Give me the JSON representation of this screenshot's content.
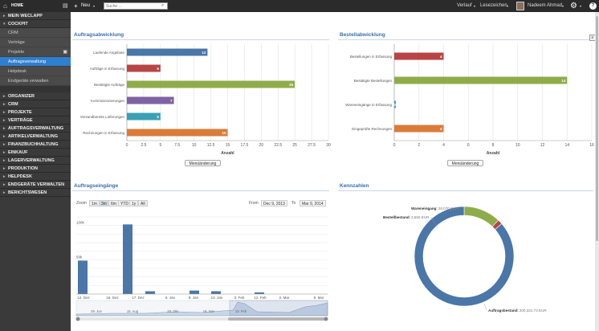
{
  "topbar": {
    "home": "HOME",
    "new": "Neu",
    "search_placeholder": "Suche ...",
    "verlauf": "Verlauf",
    "lesezeichen": "Lesezeichen",
    "user": "Nadeem Ahmad",
    "help": "?"
  },
  "sidebar": {
    "mein": "MEIN WECLAPP",
    "cockpit": "COCKPIT",
    "cockpit_items": [
      "CRM",
      "Verträge",
      "Projekte",
      "Auftragsverwaltung",
      "Helpdesk",
      "Endgeräte verwalten"
    ],
    "sections": [
      "ORGANIZER",
      "CRM",
      "PROJEKTE",
      "VERTRÄGE",
      "AUFTRAGSVERWALTUNG",
      "ARTIKELVERWALTUNG",
      "FINANZBUCHHALTUNG",
      "EINKAUF",
      "LAGERVERWALTUNG",
      "PRODUKTION",
      "HELPDESK",
      "ENDGERÄTE VERWALTEN",
      "BERICHTSWESEN"
    ]
  },
  "colors": {
    "blue": "#4a76a8",
    "red": "#b84545",
    "green": "#8fac4a",
    "purple": "#7f62a3",
    "teal": "#3aa0b5",
    "orange": "#d97c3a",
    "accent": "#2f7fd0"
  },
  "panels": {
    "auftrag": "Auftragsabwicklung",
    "bestell": "Bestellabwicklung",
    "eingaenge": "Auftragseingänge",
    "kennzahlen": "Kennzahlen",
    "reset": "Menüänderung"
  },
  "chart_data": [
    {
      "type": "bar",
      "title": "Auftragsabwicklung",
      "orientation": "horizontal",
      "categories": [
        "Laufende Angebote",
        "Aufträge in Erfassung",
        "Bestätigte Aufträge",
        "Kommissionierungen",
        "Versandbereite Lieferungen",
        "Rechnungen in Erfassung"
      ],
      "values": [
        12,
        5,
        25,
        7,
        5,
        15
      ],
      "colors": [
        "#4a76a8",
        "#b84545",
        "#8fac4a",
        "#7f62a3",
        "#3aa0b5",
        "#d97c3a"
      ],
      "xlabel": "Anzahl",
      "xlim": [
        0,
        30
      ],
      "xticks": [
        "0",
        "2.5",
        "5",
        "7.5",
        "10",
        "12.5",
        "15",
        "17.5",
        "20",
        "22.5",
        "25",
        "27.5",
        "30"
      ]
    },
    {
      "type": "bar",
      "title": "Bestellabwicklung",
      "orientation": "horizontal",
      "categories": [
        "Bestellungen in Erfassung",
        "Bestätigte Bestellungen",
        "Wareneingänge in Erfassung",
        "Eingeprüfte Rechnungen"
      ],
      "values": [
        4,
        14,
        0,
        4
      ],
      "colors": [
        "#b84545",
        "#8fac4a",
        "#3aa0b5",
        "#d97c3a"
      ],
      "xlabel": "Anzahl",
      "xlim": [
        0,
        16
      ],
      "xticks": [
        "0",
        "2",
        "4",
        "6",
        "8",
        "10",
        "12",
        "14",
        "16"
      ]
    },
    {
      "type": "bar",
      "title": "Auftragseingänge",
      "zoom_label": "Zoom",
      "zoom": [
        "1m",
        "3m",
        "6m",
        "YTD",
        "1y",
        "All"
      ],
      "from_label": "From",
      "from": "Dec 9, 2013",
      "to_label": "To",
      "to": "Mar 9, 2014",
      "yticks": [
        "100k",
        "50k"
      ],
      "ylim": [
        0,
        120000
      ],
      "x": [
        "12. Dez",
        "14. Dez",
        "17. Dez",
        "19. Dez",
        "2. Jan",
        "9. Jan",
        "13. Jan",
        "17. Jan",
        "12. Feb",
        "20. Feb",
        "9. Mar"
      ],
      "values": [
        48000,
        0,
        100000,
        4000,
        0,
        5000,
        4000,
        0,
        2000,
        0,
        0
      ],
      "xticks": [
        "12. Dez",
        "16. Dez",
        "17. Dez",
        "6. Jan",
        "8. Jan",
        "13. Jan",
        "3. Feb",
        "12. Feb",
        "2. Mar",
        "9. Mar"
      ],
      "navigator_ticks": [
        "28. Jun",
        "15. Aug",
        "28. Okt",
        "18. Nov",
        "10. Feb"
      ]
    },
    {
      "type": "pie",
      "title": "Kennzahlen",
      "donut": true,
      "slices": [
        {
          "label": "Auftragsbestand",
          "value": "200,331.73 EUR",
          "num": 200331.73,
          "color": "#4a76a8"
        },
        {
          "label": "Bestellbestand",
          "value": "3,550 EUR",
          "num": 3550,
          "color": "#b84545"
        },
        {
          "label": "Wareneingang",
          "value": "28,070 EUR",
          "num": 28070,
          "color": "#8fac4a"
        }
      ]
    }
  ]
}
